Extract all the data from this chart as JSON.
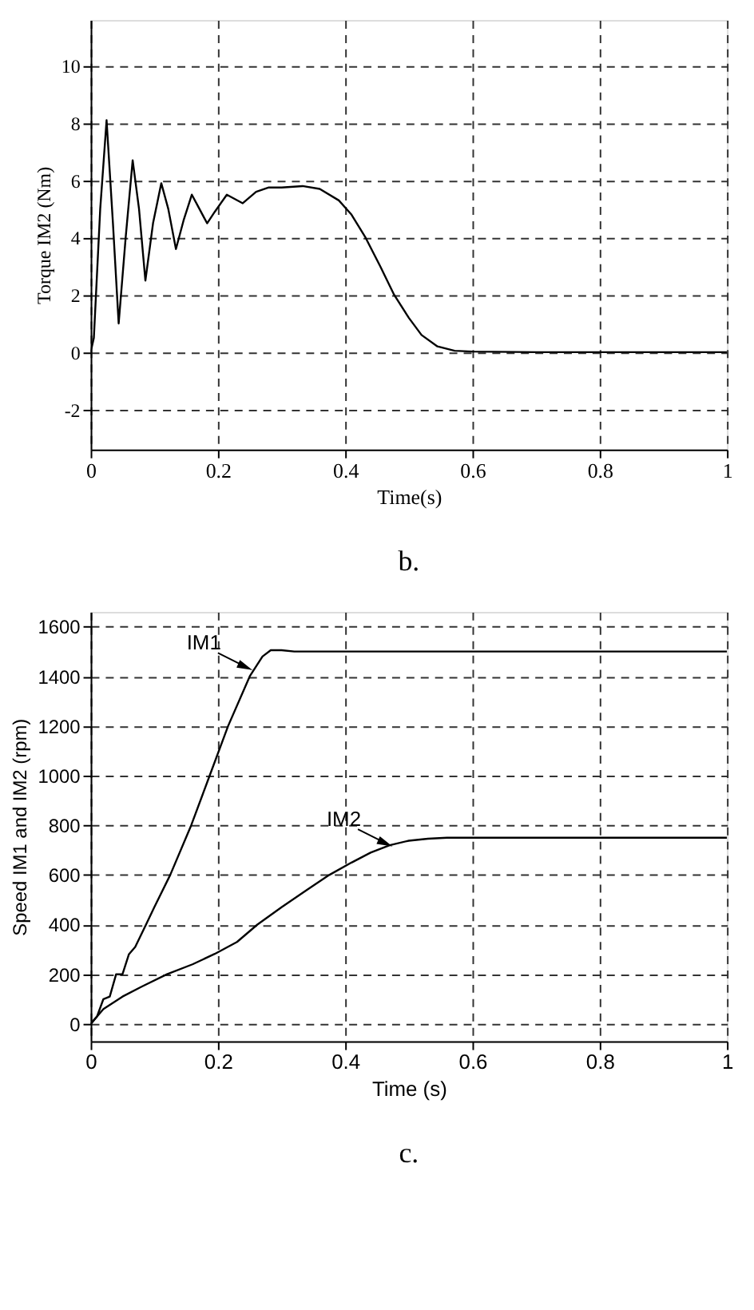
{
  "chart_data": [
    {
      "type": "line",
      "xlabel": "Time(s)",
      "ylabel": "Torque IM2 (Nm)",
      "xlim": [
        0,
        1
      ],
      "xticks": [
        0,
        0.2,
        0.4,
        0.6,
        0.8,
        1
      ],
      "ylim": [
        -3.4,
        11.6
      ],
      "yticks": [
        -2,
        0,
        2,
        4,
        6,
        8,
        10
      ],
      "grid": true,
      "annotations": [
        "b."
      ],
      "series": [
        {
          "color": "#000000",
          "x": [
            0,
            0.005,
            0.015,
            0.025,
            0.035,
            0.044,
            0.055,
            0.066,
            0.076,
            0.086,
            0.098,
            0.111,
            0.122,
            0.134,
            0.146,
            0.159,
            0.171,
            0.183,
            0.195,
            0.214,
            0.239,
            0.26,
            0.28,
            0.3,
            0.333,
            0.36,
            0.39,
            0.41,
            0.432,
            0.455,
            0.477,
            0.5,
            0.52,
            0.545,
            0.572,
            0.6,
            0.7,
            1
          ],
          "values": [
            0,
            0.5,
            5,
            8.1,
            4.5,
            1.0,
            4.0,
            6.7,
            5.0,
            2.5,
            4.5,
            5.9,
            5.0,
            3.6,
            4.6,
            5.5,
            5.0,
            4.5,
            4.9,
            5.5,
            5.2,
            5.6,
            5.75,
            5.75,
            5.8,
            5.7,
            5.3,
            4.8,
            4.0,
            3.0,
            2.0,
            1.2,
            0.6,
            0.2,
            0.05,
            0.02,
            0,
            0
          ]
        }
      ]
    },
    {
      "type": "line",
      "xlabel": "Time (s)",
      "ylabel": "Speed IM1 and IM2 (rpm)",
      "xlim": [
        0,
        1
      ],
      "xticks": [
        0,
        0.2,
        0.4,
        0.6,
        0.8,
        1
      ],
      "ylim": [
        -70,
        1660
      ],
      "yticks": [
        0,
        200,
        400,
        600,
        800,
        1000,
        1200,
        1400,
        1600
      ],
      "grid": true,
      "annotations": [
        {
          "text": "IM1",
          "x": 0.25,
          "y": 1430
        },
        {
          "text": "IM2",
          "x": 0.47,
          "y": 720
        },
        "c."
      ],
      "series": [
        {
          "color": "#000000",
          "x": [
            0,
            0.01,
            0.02,
            0.03,
            0.04,
            0.05,
            0.06,
            0.07,
            0.087,
            0.1,
            0.125,
            0.158,
            0.187,
            0.216,
            0.25,
            0.27,
            0.283,
            0.3,
            0.32,
            1
          ],
          "values": [
            0,
            30,
            100,
            110,
            200,
            200,
            280,
            310,
            400,
            470,
            600,
            800,
            1000,
            1200,
            1400,
            1480,
            1505,
            1505,
            1500,
            1500
          ]
        },
        {
          "color": "#000000",
          "x": [
            0,
            0.02,
            0.05,
            0.08,
            0.12,
            0.16,
            0.195,
            0.23,
            0.262,
            0.3,
            0.34,
            0.375,
            0.41,
            0.44,
            0.47,
            0.5,
            0.53,
            0.56,
            0.6,
            1
          ],
          "values": [
            0,
            60,
            110,
            150,
            200,
            240,
            282,
            330,
            400,
            470,
            540,
            600,
            650,
            690,
            720,
            738,
            746,
            750,
            750,
            750
          ]
        }
      ]
    }
  ]
}
